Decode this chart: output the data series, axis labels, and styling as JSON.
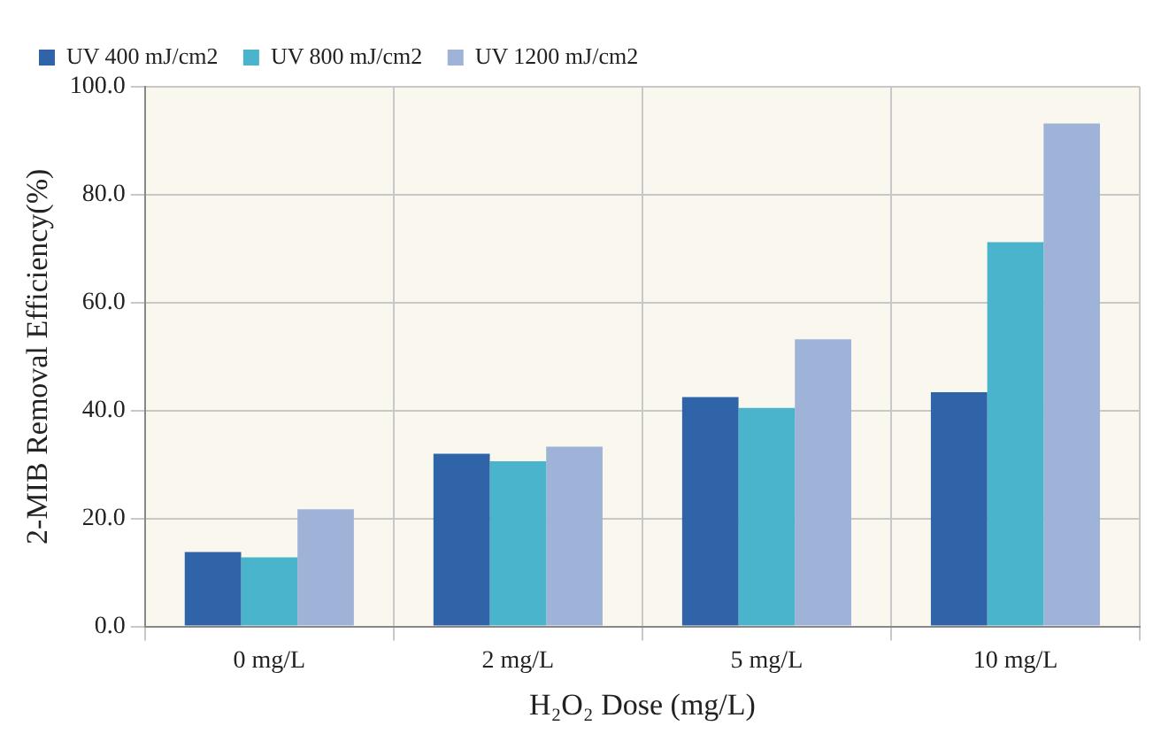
{
  "chart_data": {
    "type": "bar",
    "xlabel": "H₂O₂ Dose (mg/L)",
    "ylabel": "2-MIB Removal Efficiency(%)",
    "categories": [
      "0 mg/L",
      "2 mg/L",
      "5 mg/L",
      "10 mg/L"
    ],
    "series": [
      {
        "name": "UV 400 mJ/cm2",
        "color": "#2f64a8",
        "values": [
          13.8,
          32.0,
          42.5,
          43.4
        ]
      },
      {
        "name": "UV 800 mJ/cm2",
        "color": "#4ab4cc",
        "values": [
          12.8,
          30.6,
          40.5,
          71.2
        ]
      },
      {
        "name": "UV 1200 mJ/cm2",
        "color": "#9fb2d8",
        "values": [
          21.7,
          33.3,
          53.2,
          93.2
        ]
      }
    ],
    "ylim": [
      0,
      100
    ],
    "yticks": [
      {
        "value": 0,
        "label": "0.0"
      },
      {
        "value": 20,
        "label": "20.0"
      },
      {
        "value": 40,
        "label": "40.0"
      },
      {
        "value": 60,
        "label": "60.0"
      },
      {
        "value": 80,
        "label": "80.0"
      },
      {
        "value": 100,
        "label": "100.0"
      }
    ],
    "grid": true,
    "legend": "top left"
  }
}
